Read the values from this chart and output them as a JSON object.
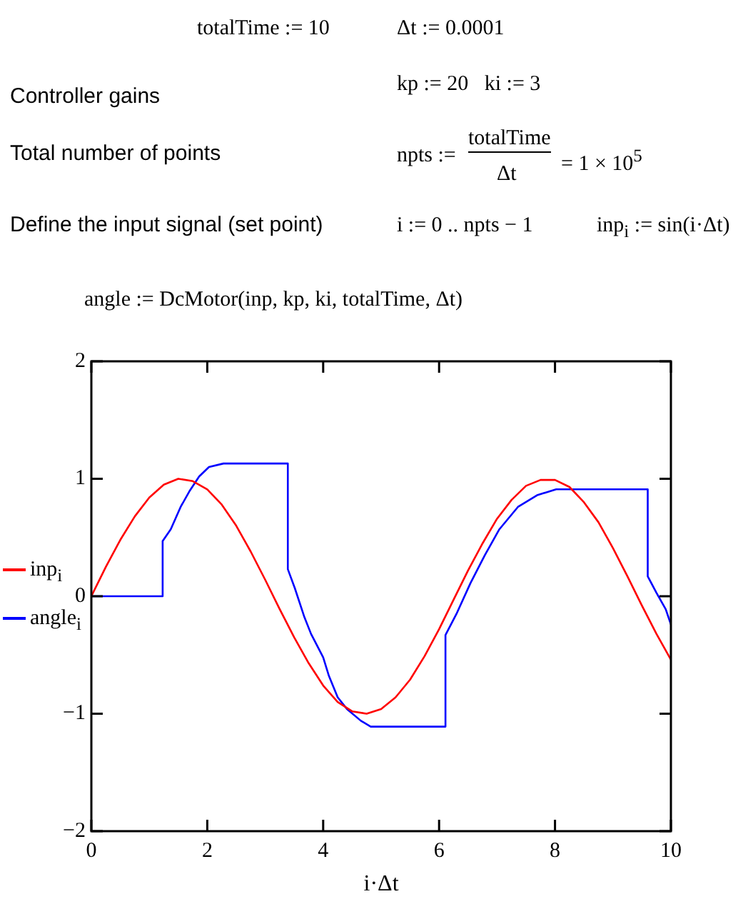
{
  "chart_data": {
    "type": "line",
    "xlabel": "i·Δt",
    "annotations": [
      "totalTime := 10",
      "Δt := 0.0001",
      "Controller gains",
      "kp := 20   ki := 3",
      "Total number of points",
      "npts :=",
      "totalTime",
      "Δt",
      "= 1 × 10$^{5}$",
      "Define the input signal (set point)",
      "i := 0 .. npts − 1",
      "inp$_{i}$ := sin(i·Δt)",
      "angle := DcMotor(inp, kp, ki, totalTime, Δt)"
    ],
    "xlim": [
      0,
      10
    ],
    "xticks": [
      0,
      2,
      4,
      6,
      8,
      10
    ],
    "ylim": [
      -2,
      2
    ],
    "yticks": [
      {
        "value": -2,
        "label": "−2"
      },
      {
        "value": -1,
        "label": "−1"
      },
      0,
      1,
      2
    ],
    "grid": false,
    "legend": "left",
    "marker": "none",
    "line_style": "solid",
    "series": [
      {
        "name": "inp$_{i}$",
        "color": "#ff0000",
        "x": [
          0,
          0.25,
          0.5,
          0.75,
          1,
          1.25,
          1.5,
          1.75,
          2,
          2.25,
          2.5,
          2.75,
          3,
          3.25,
          3.5,
          3.75,
          4,
          4.25,
          4.5,
          4.75,
          5,
          5.25,
          5.5,
          5.75,
          6,
          6.25,
          6.5,
          6.75,
          7,
          7.25,
          7.5,
          7.75,
          8,
          8.25,
          8.5,
          8.75,
          9,
          9.25,
          9.5,
          9.75,
          10
        ],
        "values": [
          0,
          0.25,
          0.48,
          0.68,
          0.84,
          0.95,
          1,
          0.98,
          0.91,
          0.78,
          0.6,
          0.38,
          0.14,
          -0.11,
          -0.35,
          -0.57,
          -0.76,
          -0.9,
          -0.98,
          -1,
          -0.96,
          -0.86,
          -0.71,
          -0.51,
          -0.28,
          -0.03,
          0.22,
          0.45,
          0.66,
          0.82,
          0.94,
          0.99,
          0.99,
          0.93,
          0.8,
          0.63,
          0.41,
          0.17,
          -0.08,
          -0.32,
          -0.54
        ]
      },
      {
        "name": "angle$_{i}$",
        "color": "#0000ff",
        "x": [
          0,
          1.23,
          1.23,
          1.37,
          1.54,
          1.7,
          1.86,
          2.03,
          2.28,
          3.39,
          3.39,
          3.51,
          3.67,
          3.79,
          4,
          4.1,
          4.25,
          4.41,
          4.65,
          4.82,
          6.11,
          6.11,
          6.3,
          6.54,
          6.79,
          7.04,
          7.36,
          7.69,
          8.02,
          9.6,
          9.6,
          9.75,
          9.91,
          10
        ],
        "values": [
          0,
          0,
          0.47,
          0.57,
          0.76,
          0.9,
          1.02,
          1.1,
          1.13,
          1.13,
          0.23,
          0.07,
          -0.17,
          -0.32,
          -0.52,
          -0.68,
          -0.86,
          -0.96,
          -1.06,
          -1.11,
          -1.11,
          -0.33,
          -0.15,
          0.11,
          0.35,
          0.57,
          0.76,
          0.86,
          0.91,
          0.91,
          0.17,
          0.03,
          -0.11,
          -0.24
        ]
      }
    ]
  }
}
